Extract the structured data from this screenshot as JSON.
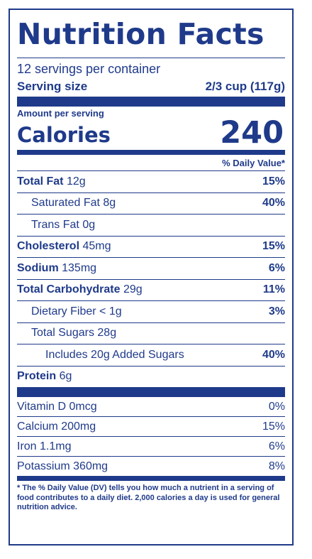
{
  "label": {
    "title": "Nutrition Facts",
    "servings": "12 servings per container",
    "serving_size_label": "Serving size",
    "serving_size_value": "2/3 cup (117g)",
    "amount_per_serving": "Amount per serving",
    "calories_label": "Calories",
    "calories_value": "240",
    "dv_header": "% Daily Value*"
  },
  "nutrients": {
    "total_fat": {
      "name": "Total Fat",
      "amount": "12g",
      "dv": "15%"
    },
    "saturated_fat": {
      "name": "Saturated Fat",
      "amount": "8g",
      "dv": "40%"
    },
    "trans_fat": {
      "name": "Trans Fat",
      "amount": "0g",
      "dv": ""
    },
    "cholesterol": {
      "name": "Cholesterol",
      "amount": "45mg",
      "dv": "15%"
    },
    "sodium": {
      "name": "Sodium",
      "amount": "135mg",
      "dv": "6%"
    },
    "total_carb": {
      "name": "Total Carbohydrate",
      "amount": "29g",
      "dv": "11%"
    },
    "fiber": {
      "name": "Dietary Fiber",
      "amount": "< 1g",
      "dv": "3%"
    },
    "total_sugars": {
      "name": "Total Sugars",
      "amount": "28g",
      "dv": ""
    },
    "added_sugars": {
      "name": "Includes 20g Added Sugars",
      "dv": "40%"
    },
    "protein": {
      "name": "Protein",
      "amount": "6g"
    }
  },
  "vitamins": {
    "vitamin_d": {
      "name": "Vitamin D 0mcg",
      "dv": "0%"
    },
    "calcium": {
      "name": "Calcium 200mg",
      "dv": "15%"
    },
    "iron": {
      "name": "Iron 1.1mg",
      "dv": "6%"
    },
    "potassium": {
      "name": "Potassium 360mg",
      "dv": "8%"
    }
  },
  "footnote": "* The % Daily Value (DV) tells you how much a nutrient in a serving of food contributes to a daily diet. 2,000 calories a day is used for general nutrition advice."
}
